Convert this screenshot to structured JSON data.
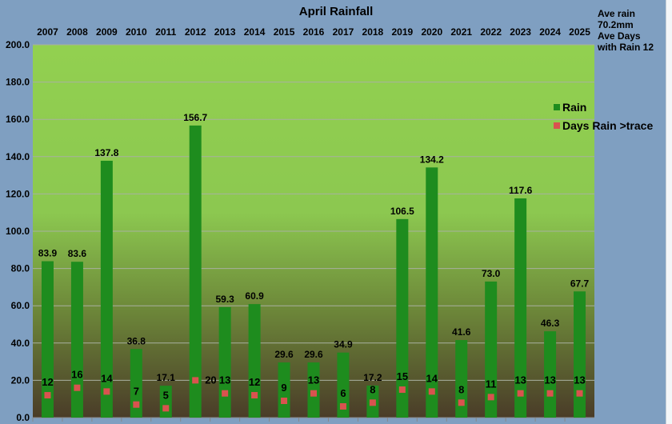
{
  "chart_data": {
    "type": "bar",
    "title": "April Rainfall",
    "xlabel": "",
    "ylabel": "",
    "ylim": [
      0,
      200
    ],
    "yticks": [
      "0.0",
      "20.0",
      "40.0",
      "60.0",
      "80.0",
      "100.0",
      "120.0",
      "140.0",
      "160.0",
      "180.0",
      "200.0"
    ],
    "categories": [
      "2007",
      "2008",
      "2009",
      "2010",
      "2011",
      "2012",
      "2013",
      "2014",
      "2015",
      "2016",
      "2017",
      "2018",
      "2019",
      "2020",
      "2021",
      "2022",
      "2023",
      "2024",
      "2025"
    ],
    "series": [
      {
        "name": "Rain",
        "type": "bar",
        "color": "#1e8c1e",
        "values": [
          83.9,
          83.6,
          137.8,
          36.8,
          17.1,
          156.7,
          59.3,
          60.9,
          29.6,
          29.6,
          34.9,
          17.2,
          106.5,
          134.2,
          41.6,
          73.0,
          117.6,
          46.3,
          67.7
        ],
        "labels": [
          "83.9",
          "83.6",
          "137.8",
          "36.8",
          "17.1",
          "156.7",
          "59.3",
          "60.9",
          "29.6",
          "29.6",
          "34.9",
          "17.2",
          "106.5",
          "134.2",
          "41.6",
          "73.0",
          "117.6",
          "46.3",
          "67.7"
        ]
      },
      {
        "name": "Days Rain >trace",
        "type": "marker",
        "color": "#d9534f",
        "values": [
          12,
          16,
          14,
          7,
          5,
          20,
          13,
          12,
          9,
          13,
          6,
          8,
          15,
          14,
          8,
          11,
          13,
          13,
          13
        ]
      }
    ],
    "legend_position": "right",
    "grid": true,
    "note_lines": [
      "Ave rain",
      "70.2mm",
      "Ave Days",
      "with Rain 12"
    ]
  }
}
